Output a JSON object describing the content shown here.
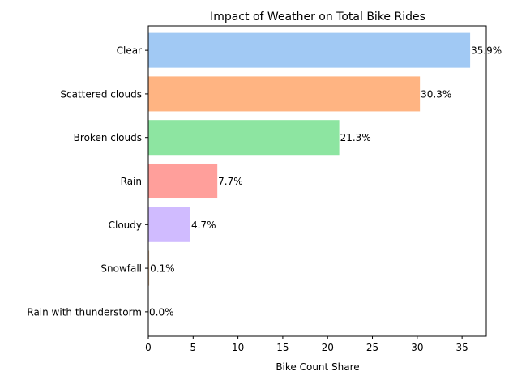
{
  "chart_data": {
    "type": "bar",
    "orientation": "horizontal",
    "title": "Impact of Weather on Total Bike Rides",
    "xlabel": "Bike Count Share",
    "ylabel": "",
    "xlim": [
      0,
      37.7
    ],
    "x_ticks": [
      0,
      5,
      10,
      15,
      20,
      25,
      30,
      35
    ],
    "grid": false,
    "categories": [
      "Clear",
      "Scattered clouds",
      "Broken clouds",
      "Rain",
      "Cloudy",
      "Snowfall",
      "Rain with thunderstorm"
    ],
    "values": [
      35.9,
      30.3,
      21.3,
      7.7,
      4.7,
      0.1,
      0.0
    ],
    "data_labels": [
      "35.9%",
      "30.3%",
      "21.3%",
      "7.7%",
      "4.7%",
      "0.1%",
      "0.0%"
    ],
    "colors": [
      "#a1c9f4",
      "#ffb482",
      "#8de5a1",
      "#ff9f9b",
      "#d0bbff",
      "#debb9b",
      "#fab0e4"
    ]
  }
}
